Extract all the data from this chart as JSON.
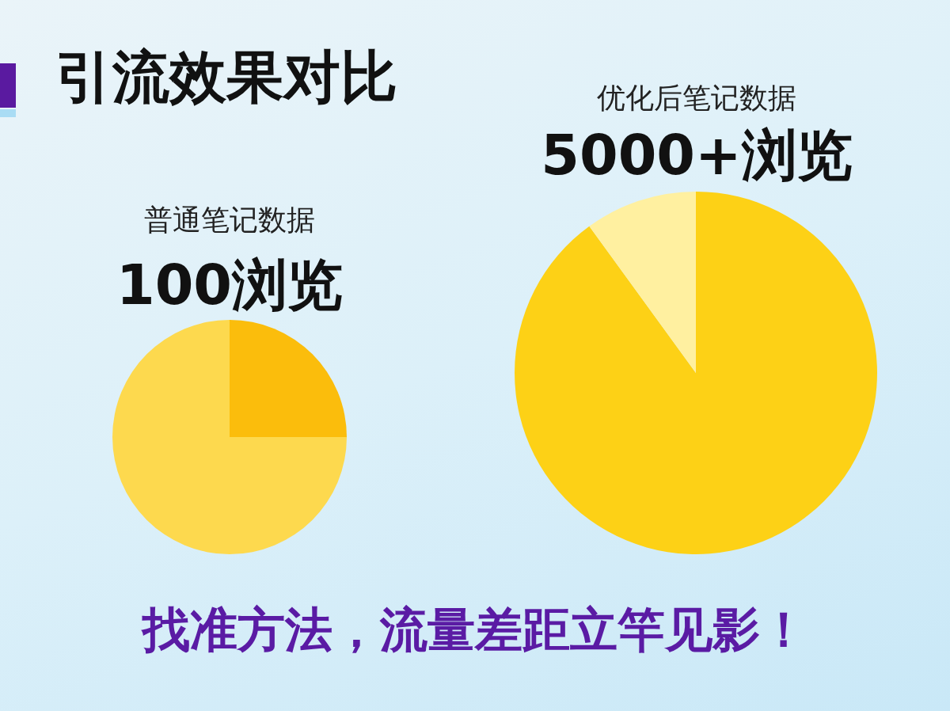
{
  "chart_data": [
    {
      "type": "other",
      "title": "引流效果对比",
      "annotations": [
        "找准方法，流量差距立竿见影！"
      ]
    },
    {
      "type": "pie",
      "title": "普通笔记数据",
      "subtitle": "100浏览",
      "categories": [
        null,
        null
      ],
      "values": [
        25,
        75
      ],
      "colors": [
        "#fbbd0c",
        "#fdd94e"
      ]
    },
    {
      "type": "pie",
      "title": "优化后笔记数据",
      "subtitle": "5000+浏览",
      "categories": [
        null,
        null
      ],
      "values": [
        90,
        10
      ],
      "colors": [
        "#fdd116",
        "#fff0a0"
      ]
    }
  ]
}
